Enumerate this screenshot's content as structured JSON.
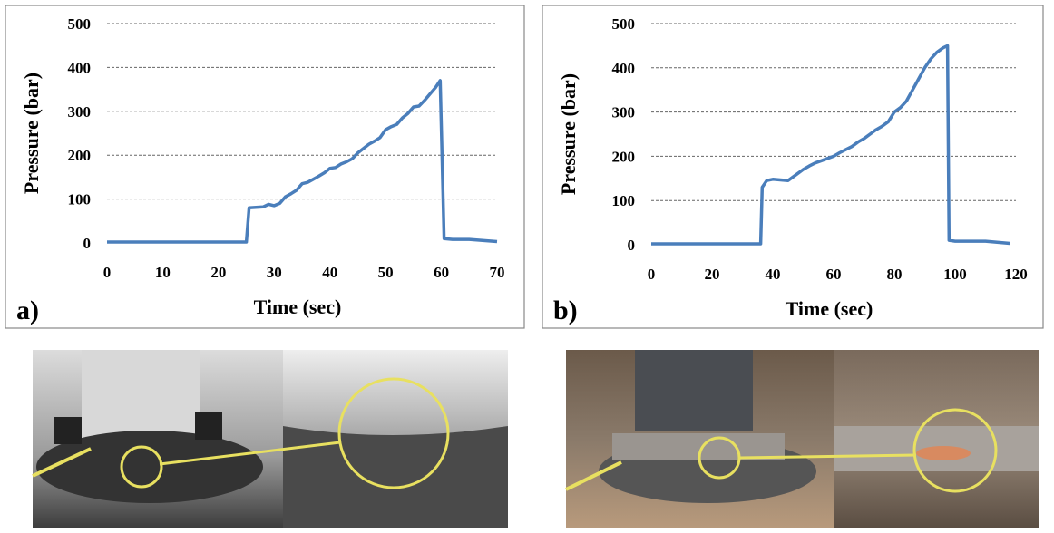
{
  "chart_data": [
    {
      "type": "line",
      "panel_label": "a)",
      "x_label": "Time (sec)",
      "y_label": "Pressure (bar)",
      "color": "#4a7ebb",
      "grid": true,
      "xlim": [
        0,
        70
      ],
      "xticks": [
        0,
        10,
        20,
        30,
        40,
        50,
        60,
        70
      ],
      "ylim": [
        0,
        500
      ],
      "yticks": [
        0,
        100,
        200,
        300,
        400,
        500
      ],
      "x": [
        0,
        25,
        25.5,
        28,
        29,
        30,
        31,
        32,
        33,
        34,
        35,
        36,
        37,
        38,
        39,
        40,
        41,
        42,
        43,
        44,
        45,
        46,
        47,
        48,
        49,
        50,
        51,
        52,
        53,
        54,
        55,
        56,
        57,
        58,
        59,
        59.8,
        60.5,
        62,
        65,
        70
      ],
      "values": [
        2,
        2,
        80,
        82,
        88,
        85,
        90,
        105,
        112,
        120,
        135,
        138,
        145,
        152,
        160,
        170,
        172,
        180,
        185,
        192,
        205,
        215,
        225,
        232,
        240,
        258,
        265,
        270,
        285,
        295,
        310,
        312,
        325,
        340,
        355,
        370,
        10,
        8,
        8,
        3
      ]
    },
    {
      "type": "line",
      "panel_label": "b)",
      "x_label": "Time (sec)",
      "y_label": "Pressure (bar)",
      "color": "#4a7ebb",
      "grid": true,
      "xlim": [
        0,
        120
      ],
      "xticks": [
        0,
        20,
        40,
        60,
        80,
        100,
        120
      ],
      "ylim": [
        0,
        500
      ],
      "yticks": [
        0,
        100,
        200,
        300,
        400,
        500
      ],
      "x": [
        0,
        36,
        36.5,
        38,
        40,
        45,
        46,
        48,
        50,
        52,
        54,
        56,
        58,
        60,
        62,
        64,
        66,
        68,
        70,
        72,
        74,
        76,
        78,
        80,
        82,
        84,
        86,
        88,
        90,
        92,
        94,
        96,
        97.5,
        98,
        100,
        110,
        118
      ],
      "values": [
        2,
        2,
        130,
        145,
        148,
        145,
        150,
        160,
        170,
        178,
        185,
        190,
        195,
        200,
        208,
        215,
        222,
        232,
        240,
        250,
        260,
        268,
        278,
        300,
        310,
        325,
        350,
        375,
        400,
        420,
        435,
        445,
        450,
        10,
        8,
        8,
        3
      ]
    }
  ]
}
